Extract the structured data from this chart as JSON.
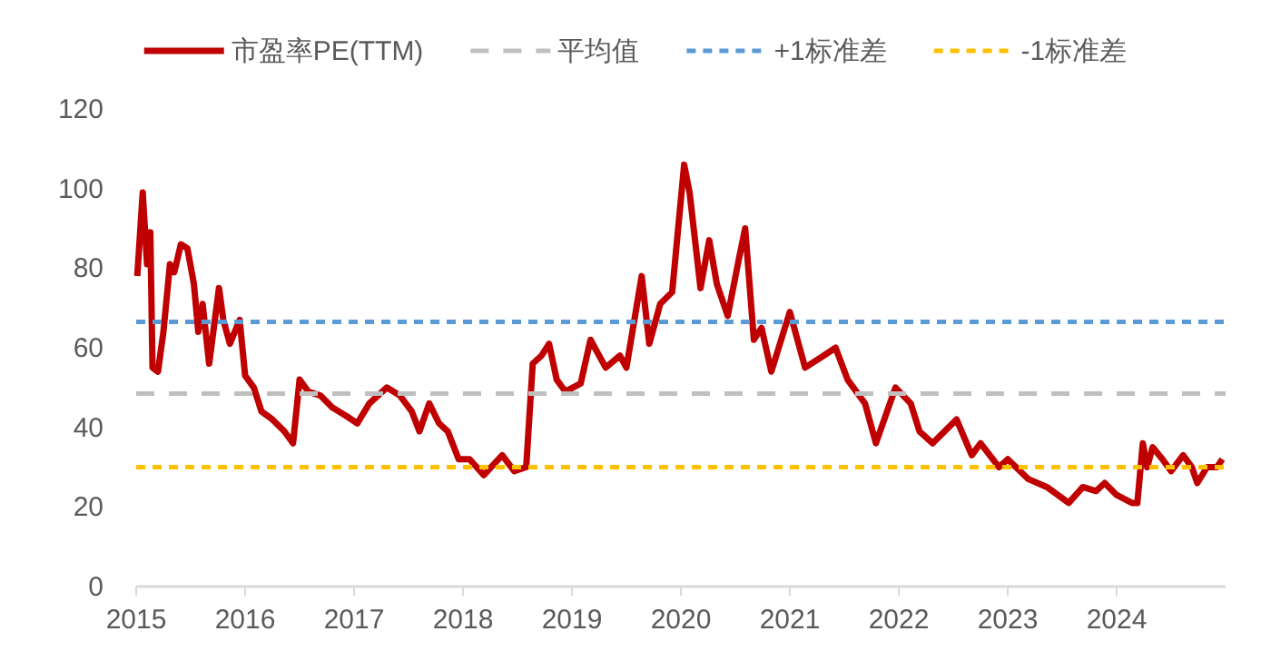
{
  "chart_data": {
    "type": "line",
    "legend": "top",
    "line_style": "solid",
    "grid": false,
    "xlim": [
      2015,
      2025
    ],
    "xticks": [
      2015,
      2016,
      2017,
      2018,
      2019,
      2020,
      2021,
      2022,
      2023,
      2024
    ],
    "ylim": [
      0,
      120
    ],
    "yticks": [
      0,
      20,
      40,
      60,
      80,
      100,
      120
    ],
    "series": [
      {
        "name": "市盈率PE(TTM)",
        "color": "#c00000",
        "x": [
          2015.01,
          2015.06,
          2015.1,
          2015.13,
          2015.15,
          2015.2,
          2015.25,
          2015.31,
          2015.35,
          2015.41,
          2015.47,
          2015.53,
          2015.57,
          2015.61,
          2015.67,
          2015.76,
          2015.8,
          2015.86,
          2015.95,
          2016.0,
          2016.08,
          2016.15,
          2016.25,
          2016.36,
          2016.44,
          2016.5,
          2016.58,
          2016.69,
          2016.8,
          2016.92,
          2017.03,
          2017.14,
          2017.3,
          2017.42,
          2017.53,
          2017.6,
          2017.69,
          2017.78,
          2017.86,
          2017.96,
          2018.06,
          2018.19,
          2018.36,
          2018.47,
          2018.58,
          2018.64,
          2018.72,
          2018.79,
          2018.86,
          2018.94,
          2019.08,
          2019.17,
          2019.31,
          2019.44,
          2019.5,
          2019.64,
          2019.71,
          2019.81,
          2019.92,
          2020.03,
          2020.08,
          2020.18,
          2020.26,
          2020.33,
          2020.43,
          2020.53,
          2020.59,
          2020.67,
          2020.74,
          2020.83,
          2021.0,
          2021.14,
          2021.31,
          2021.42,
          2021.53,
          2021.69,
          2021.79,
          2021.97,
          2022.11,
          2022.19,
          2022.31,
          2022.53,
          2022.67,
          2022.75,
          2022.92,
          2023.0,
          2023.19,
          2023.36,
          2023.56,
          2023.69,
          2023.81,
          2023.89,
          2024.0,
          2024.14,
          2024.19,
          2024.24,
          2024.28,
          2024.33,
          2024.42,
          2024.5,
          2024.61,
          2024.69,
          2024.74,
          2024.83,
          2024.92,
          2024.97
        ],
        "values": [
          78,
          99,
          81,
          89,
          55,
          54,
          64,
          81,
          79,
          86,
          85,
          76,
          64,
          71,
          56,
          75,
          67,
          61,
          67,
          53,
          50,
          44,
          42,
          39,
          36,
          52,
          49,
          48,
          45,
          43,
          41,
          46,
          50,
          48,
          44,
          39,
          46,
          41,
          39,
          32,
          32,
          28,
          33,
          29,
          30,
          56,
          58,
          61,
          52,
          49,
          51,
          62,
          55,
          58,
          55,
          78,
          61,
          71,
          74,
          106,
          99,
          75,
          87,
          76,
          68,
          82,
          90,
          62,
          65,
          54,
          69,
          55,
          58,
          60,
          52,
          46,
          36,
          50,
          46,
          39,
          36,
          42,
          33,
          36,
          30,
          32,
          27,
          25,
          21,
          25,
          24,
          26,
          23,
          21,
          21,
          36,
          30,
          35,
          32,
          29,
          33,
          30,
          26,
          30,
          30,
          32
        ]
      }
    ],
    "ref_lines": [
      {
        "axis": "y",
        "value": 48.5,
        "label": "平均值",
        "color": "#bfbfbf",
        "line_style": "dashed"
      },
      {
        "axis": "y",
        "value": 66.5,
        "label": "+1标准差",
        "color": "#5b9bd5",
        "line_style": "dotted"
      },
      {
        "axis": "y",
        "value": 30,
        "label": "-1标准差",
        "color": "#ffc000",
        "line_style": "dotted"
      }
    ]
  }
}
